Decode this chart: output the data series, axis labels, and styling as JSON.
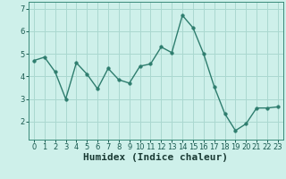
{
  "x": [
    0,
    1,
    2,
    3,
    4,
    5,
    6,
    7,
    8,
    9,
    10,
    11,
    12,
    13,
    14,
    15,
    16,
    17,
    18,
    19,
    20,
    21,
    22,
    23
  ],
  "y": [
    4.7,
    4.85,
    4.2,
    3.0,
    4.6,
    4.1,
    3.45,
    4.35,
    3.85,
    3.7,
    4.45,
    4.55,
    5.3,
    5.05,
    6.7,
    6.15,
    5.0,
    3.55,
    2.35,
    1.6,
    1.9,
    2.6,
    2.6,
    2.65
  ],
  "xlabel": "Humidex (Indice chaleur)",
  "line_color": "#2e7d6e",
  "marker_color": "#2e7d6e",
  "bg_color": "#cef0ea",
  "grid_color": "#aad8d0",
  "ylim": [
    1.2,
    7.3
  ],
  "xlim": [
    -0.5,
    23.5
  ],
  "yticks": [
    2,
    3,
    4,
    5,
    6,
    7
  ],
  "xticks": [
    0,
    1,
    2,
    3,
    4,
    5,
    6,
    7,
    8,
    9,
    10,
    11,
    12,
    13,
    14,
    15,
    16,
    17,
    18,
    19,
    20,
    21,
    22,
    23
  ],
  "tick_label_fontsize": 6.0,
  "xlabel_fontsize": 8.0,
  "marker_size": 2.5,
  "line_width": 1.0,
  "spine_color": "#3a8a7a"
}
